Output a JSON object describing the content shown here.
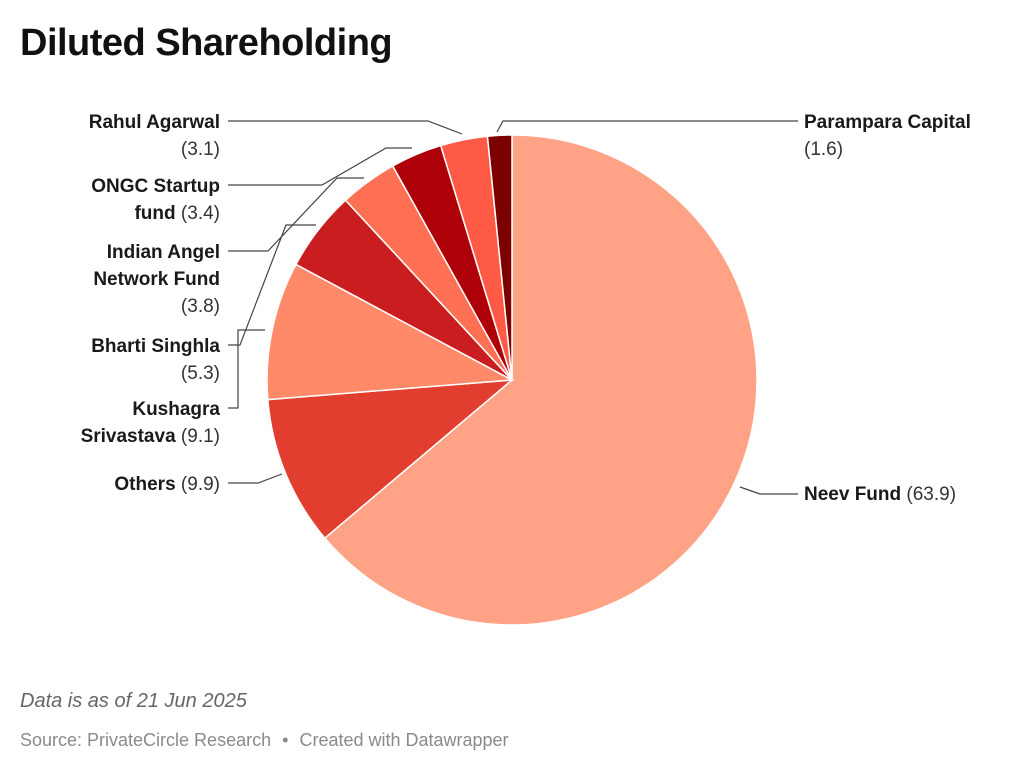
{
  "title": "Diluted Shareholding",
  "notes": "Data is as of 21 Jun 2025",
  "footer": {
    "source": "Source: PrivateCircle Research",
    "separator": "•",
    "created_with": "Created with Datawrapper"
  },
  "chart_data": {
    "type": "pie",
    "title": "Diluted Shareholding",
    "series": [
      {
        "name": "Neev Fund",
        "value": 63.9,
        "color": "#FFA286",
        "name_lines": [
          "Neev Fund"
        ],
        "value_text": "(63.9)"
      },
      {
        "name": "Others",
        "value": 9.9,
        "color": "#E23E2F",
        "name_lines": [
          "Others"
        ],
        "value_text": "(9.9)"
      },
      {
        "name": "Kushagra Srivastava",
        "value": 9.1,
        "color": "#FF8A6A",
        "name_lines": [
          "Kushagra",
          "Srivastava"
        ],
        "value_text": "(9.1)"
      },
      {
        "name": "Bharti Singhla",
        "value": 5.3,
        "color": "#C91D1F",
        "name_lines": [
          "Bharti Singhla"
        ],
        "value_text": "(5.3)"
      },
      {
        "name": "Indian Angel Network Fund",
        "value": 3.8,
        "color": "#FF7054",
        "name_lines": [
          "Indian Angel",
          "Network Fund"
        ],
        "value_text": "(3.8)"
      },
      {
        "name": "ONGC Startup fund",
        "value": 3.4,
        "color": "#AE0009",
        "name_lines": [
          "ONGC Startup",
          "fund"
        ],
        "value_text": "(3.4)"
      },
      {
        "name": "Rahul Agarwal",
        "value": 3.1,
        "color": "#FF5A45",
        "name_lines": [
          "Rahul Agarwal"
        ],
        "value_text": "(3.1)"
      },
      {
        "name": "Parampara Capital",
        "value": 1.6,
        "color": "#7D0000",
        "name_lines": [
          "Parampara Capital"
        ],
        "value_text": "(1.6)"
      }
    ]
  }
}
